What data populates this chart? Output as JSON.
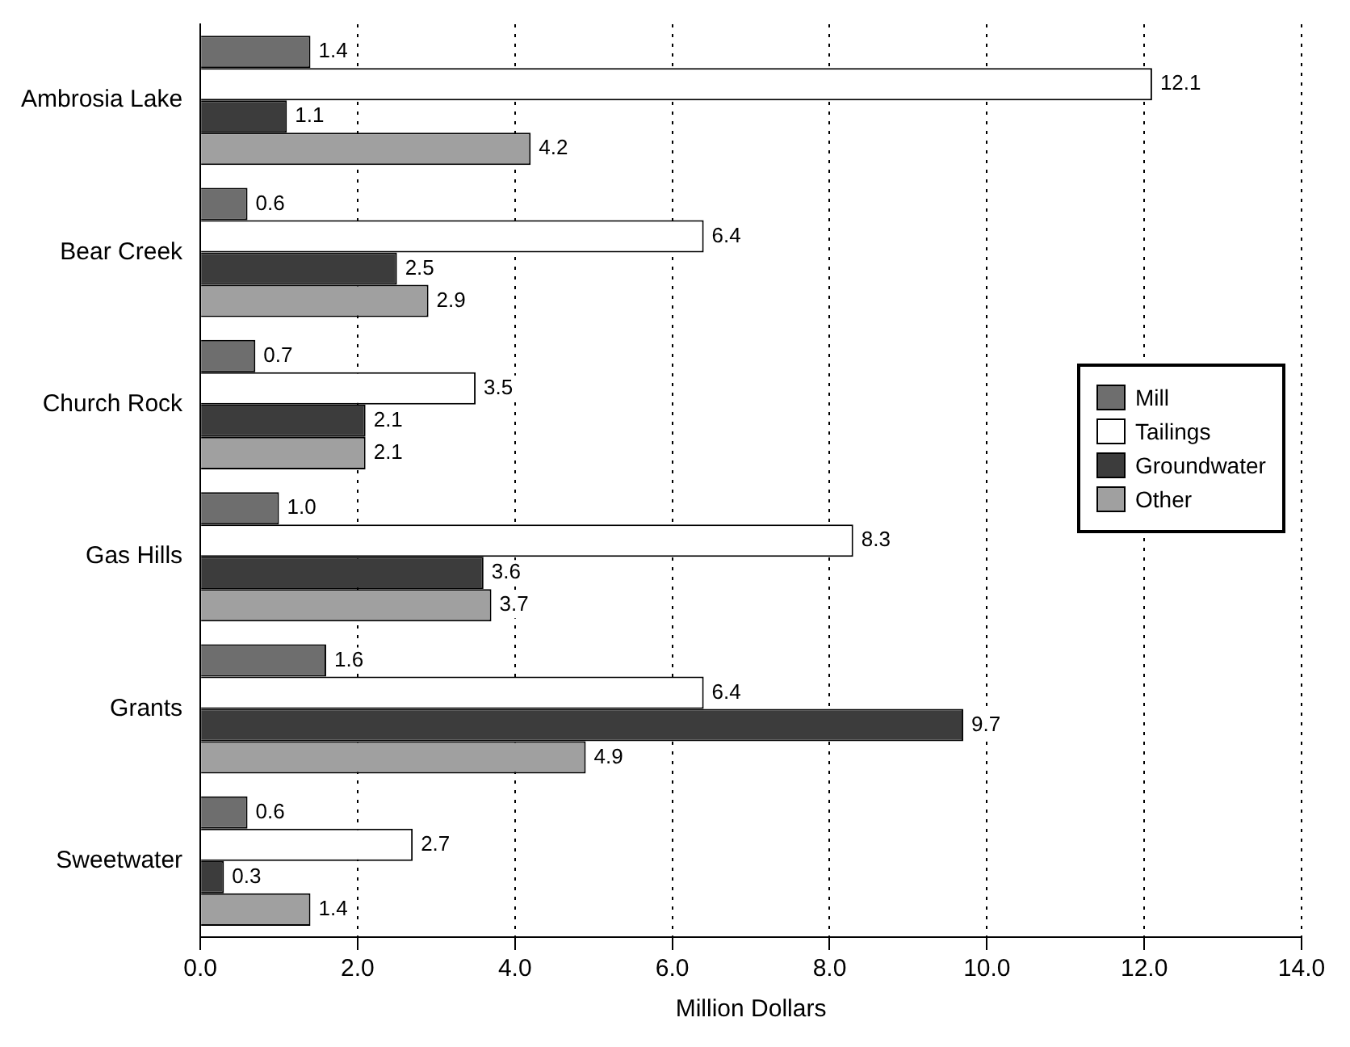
{
  "chart_data": {
    "type": "bar",
    "orientation": "horizontal",
    "xlabel": "Million Dollars",
    "categories": [
      "Ambrosia Lake",
      "Bear Creek",
      "Church Rock",
      "Gas Hills",
      "Grants",
      "Sweetwater"
    ],
    "series": [
      {
        "name": "Mill",
        "color": "#6e6e6e",
        "values": [
          1.4,
          0.6,
          0.7,
          1.0,
          1.6,
          0.6
        ],
        "value_labels": [
          "1.4",
          "0.6",
          "0.7",
          "1.0",
          "1.6",
          "0.6"
        ]
      },
      {
        "name": "Tailings",
        "color": "#ffffff",
        "values": [
          12.1,
          6.4,
          3.5,
          8.3,
          6.4,
          2.7
        ],
        "value_labels": [
          "12.1",
          "6.4",
          "3.5",
          "8.3",
          "6.4",
          "2.7"
        ]
      },
      {
        "name": "Groundwater",
        "color": "#3c3c3c",
        "values": [
          1.1,
          2.5,
          2.1,
          3.6,
          9.7,
          0.3
        ],
        "value_labels": [
          "1.1",
          "2.5",
          "2.1",
          "3.6",
          "9.7",
          "0.3"
        ]
      },
      {
        "name": "Other",
        "color": "#a0a0a0",
        "values": [
          4.2,
          2.9,
          2.1,
          3.7,
          4.9,
          1.4
        ],
        "value_labels": [
          "4.2",
          "2.9",
          "2.1",
          "3.7",
          "4.9",
          "1.4"
        ]
      }
    ],
    "xlim": [
      0,
      14
    ],
    "xticks": [
      {
        "value": 0,
        "label": "0.0"
      },
      {
        "value": 2,
        "label": "2.0"
      },
      {
        "value": 4,
        "label": "4.0"
      },
      {
        "value": 6,
        "label": "6.0"
      },
      {
        "value": 8,
        "label": "8.0"
      },
      {
        "value": 10,
        "label": "10.0"
      },
      {
        "value": 12,
        "label": "12.0"
      },
      {
        "value": 14,
        "label": "14.0"
      }
    ],
    "grid": "x",
    "legend": "right"
  }
}
